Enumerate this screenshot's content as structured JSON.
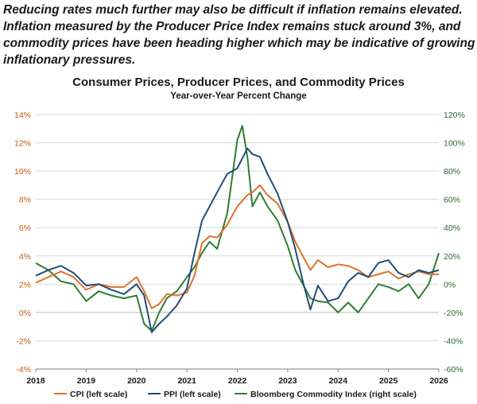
{
  "caption": "Reducing rates much further may also be difficult if inflation remains elevated. Inflation measured by the Producer Price Index remains stuck around 3%, and commodity prices have been heading higher which may be indicative of growing inflationary pressures.",
  "chart_data": {
    "type": "line",
    "title": "Consumer Prices, Producer Prices, and Commodity Prices",
    "subtitle": "Year-over-Year Percent Change",
    "x_ticks": [
      "2018",
      "2019",
      "2020",
      "2021",
      "2022",
      "2023",
      "2024",
      "2025",
      "2026"
    ],
    "x_range": [
      2018,
      2026
    ],
    "y_left": {
      "range": [
        -4,
        14
      ],
      "ticks": [
        "-4%",
        "-2%",
        "0%",
        "2%",
        "4%",
        "6%",
        "8%",
        "10%",
        "12%",
        "14%"
      ],
      "color": "#c55a11"
    },
    "y_right": {
      "range": [
        -60,
        120
      ],
      "ticks": [
        "-60%",
        "-40%",
        "-20%",
        "0%",
        "20%",
        "40%",
        "60%",
        "80%",
        "100%",
        "120%"
      ],
      "color": "#2e6b2e"
    },
    "series": [
      {
        "name": "CPI (left scale)",
        "axis": "left",
        "color": "#e0712b",
        "x": [
          2018.0,
          2018.25,
          2018.5,
          2018.75,
          2019.0,
          2019.25,
          2019.5,
          2019.75,
          2020.0,
          2020.15,
          2020.3,
          2020.45,
          2020.6,
          2020.8,
          2021.0,
          2021.15,
          2021.3,
          2021.45,
          2021.6,
          2021.8,
          2022.0,
          2022.2,
          2022.3,
          2022.45,
          2022.6,
          2022.8,
          2023.0,
          2023.15,
          2023.3,
          2023.45,
          2023.6,
          2023.8,
          2024.0,
          2024.2,
          2024.4,
          2024.6,
          2024.8,
          2025.0,
          2025.2,
          2025.4,
          2025.6,
          2025.8,
          2026.0
        ],
        "values": [
          2.1,
          2.5,
          2.9,
          2.5,
          1.6,
          2.0,
          1.8,
          1.8,
          2.5,
          1.5,
          0.3,
          0.6,
          1.3,
          1.2,
          1.4,
          2.6,
          4.9,
          5.4,
          5.3,
          6.2,
          7.5,
          8.3,
          8.5,
          9.0,
          8.3,
          7.7,
          6.4,
          5.0,
          4.0,
          3.0,
          3.7,
          3.2,
          3.4,
          3.3,
          3.0,
          2.5,
          2.7,
          2.9,
          2.4,
          2.7,
          2.9,
          2.7,
          2.7
        ]
      },
      {
        "name": "PPI (left scale)",
        "axis": "left",
        "color": "#1f4e79",
        "x": [
          2018.0,
          2018.25,
          2018.5,
          2018.75,
          2019.0,
          2019.25,
          2019.5,
          2019.75,
          2020.0,
          2020.15,
          2020.3,
          2020.45,
          2020.6,
          2020.8,
          2021.0,
          2021.15,
          2021.3,
          2021.45,
          2021.6,
          2021.8,
          2022.0,
          2022.2,
          2022.3,
          2022.45,
          2022.6,
          2022.8,
          2023.0,
          2023.15,
          2023.3,
          2023.45,
          2023.6,
          2023.8,
          2024.0,
          2024.2,
          2024.4,
          2024.6,
          2024.8,
          2025.0,
          2025.2,
          2025.4,
          2025.6,
          2025.8,
          2026.0
        ],
        "values": [
          2.6,
          3.0,
          3.3,
          2.8,
          1.9,
          2.0,
          1.6,
          1.3,
          2.0,
          1.2,
          -1.4,
          -0.8,
          -0.3,
          0.5,
          1.7,
          4.2,
          6.5,
          7.5,
          8.5,
          9.8,
          10.2,
          11.6,
          11.2,
          11.0,
          9.8,
          8.4,
          6.4,
          4.5,
          2.2,
          0.2,
          1.9,
          0.8,
          1.0,
          2.2,
          2.8,
          2.5,
          3.5,
          3.7,
          2.8,
          2.5,
          3.0,
          2.8,
          3.0
        ]
      },
      {
        "name": "Bloomberg Commodity Index (right scale)",
        "axis": "right",
        "color": "#2e7d32",
        "x": [
          2018.0,
          2018.25,
          2018.5,
          2018.75,
          2019.0,
          2019.25,
          2019.5,
          2019.75,
          2020.0,
          2020.15,
          2020.3,
          2020.45,
          2020.6,
          2020.8,
          2021.0,
          2021.15,
          2021.3,
          2021.45,
          2021.6,
          2021.8,
          2022.0,
          2022.1,
          2022.2,
          2022.3,
          2022.45,
          2022.6,
          2022.8,
          2023.0,
          2023.15,
          2023.3,
          2023.45,
          2023.6,
          2023.8,
          2024.0,
          2024.2,
          2024.4,
          2024.6,
          2024.8,
          2025.0,
          2025.2,
          2025.4,
          2025.6,
          2025.8,
          2026.0
        ],
        "values": [
          15,
          10,
          2,
          0,
          -12,
          -5,
          -8,
          -10,
          -8,
          -28,
          -33,
          -20,
          -10,
          -5,
          5,
          12,
          22,
          30,
          25,
          50,
          102,
          112,
          90,
          55,
          65,
          55,
          45,
          27,
          10,
          0,
          -10,
          -12,
          -13,
          -20,
          -13,
          -20,
          -10,
          0,
          -2,
          -5,
          0,
          -10,
          0,
          22
        ]
      }
    ],
    "legend": [
      "CPI (left scale)",
      "PPI (left scale)",
      "Bloomberg Commodity Index (right scale)"
    ],
    "legend_position": "bottom",
    "grid": true
  }
}
